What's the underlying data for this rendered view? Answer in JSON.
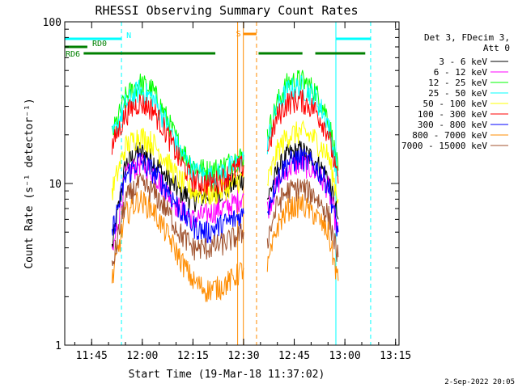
{
  "chart_data": {
    "type": "line",
    "title": "RHESSI Observing Summary Count Rates",
    "xlabel": "Start Time (19-Mar-18 11:37:02)",
    "ylabel": "Count Rate (s⁻¹ detector⁻¹)",
    "x_unit": "minutes after 11:37:02",
    "xlim_minutes": [
      0,
      99
    ],
    "ylim": [
      1,
      100
    ],
    "y_scale": "log",
    "grid": false,
    "x_ticks": [
      {
        "label": "11:45",
        "minutes": 7.97
      },
      {
        "label": "12:00",
        "minutes": 22.97
      },
      {
        "label": "12:15",
        "minutes": 37.97
      },
      {
        "label": "12:30",
        "minutes": 52.97
      },
      {
        "label": "12:45",
        "minutes": 67.97
      },
      {
        "label": "13:00",
        "minutes": 82.97
      },
      {
        "label": "13:15",
        "minutes": 97.97
      }
    ],
    "y_ticks": [
      {
        "label": "1",
        "value": 1
      },
      {
        "label": "10",
        "value": 10
      },
      {
        "label": "100",
        "value": 100
      }
    ],
    "legend_header": [
      "Det 3, FDecim 3,",
      "Att 0"
    ],
    "legend_position": "right",
    "series": [
      {
        "name": "3 - 6 keV",
        "color": "#000000",
        "segments": [
          {
            "t": [
              14,
              18,
              22,
              26,
              30,
              34,
              38,
              42,
              46,
              50,
              53
            ],
            "v": [
              4,
              13,
              16,
              14,
              11,
              9,
              8,
              8.5,
              9,
              10,
              11
            ]
          },
          {
            "t": [
              60,
              63,
              66,
              70,
              74,
              78,
              81
            ],
            "v": [
              8,
              12,
              15,
              16,
              14,
              11,
              6
            ]
          }
        ]
      },
      {
        "name": "6 - 12 keV",
        "color": "#ff00ff",
        "segments": [
          {
            "t": [
              14,
              18,
              22,
              26,
              30,
              34,
              38,
              42,
              46,
              50,
              53
            ],
            "v": [
              3.5,
              11,
              13.5,
              12,
              9,
              7,
              6,
              6.5,
              7,
              7.5,
              8.5
            ]
          },
          {
            "t": [
              60,
              63,
              66,
              70,
              74,
              78,
              81
            ],
            "v": [
              7,
              10,
              12.5,
              13.5,
              12,
              9.5,
              5
            ]
          }
        ]
      },
      {
        "name": "12 - 25 keV",
        "color": "#00ff00",
        "segments": [
          {
            "t": [
              14,
              18,
              22,
              26,
              30,
              34,
              38,
              42,
              46,
              50,
              53
            ],
            "v": [
              20,
              34,
              42,
              38,
              26,
              17,
              13,
              12,
              12.5,
              14,
              15
            ]
          },
          {
            "t": [
              60,
              63,
              66,
              70,
              74,
              78,
              81
            ],
            "v": [
              20,
              32,
              42,
              44,
              38,
              26,
              12
            ]
          }
        ]
      },
      {
        "name": "25 - 50 keV",
        "color": "#00ffff",
        "segments": [
          {
            "t": [
              14,
              18,
              22,
              26,
              30,
              34,
              38,
              42,
              46,
              50,
              53
            ],
            "v": [
              19,
              31,
              38,
              34,
              24,
              16,
              12,
              11,
              11.5,
              13,
              14
            ]
          },
          {
            "t": [
              60,
              63,
              66,
              70,
              74,
              78,
              81
            ],
            "v": [
              18,
              30,
              38,
              40,
              35,
              24,
              11
            ]
          }
        ]
      },
      {
        "name": "50 - 100 keV",
        "color": "#ffff00",
        "segments": [
          {
            "t": [
              14,
              18,
              22,
              26,
              30,
              34,
              38,
              42,
              46,
              50,
              53
            ],
            "v": [
              9,
              17,
              20,
              18,
              14,
              10.5,
              9,
              8.5,
              9,
              10,
              11
            ]
          },
          {
            "t": [
              60,
              63,
              66,
              70,
              74,
              78,
              81
            ],
            "v": [
              10,
              16,
              20,
              21,
              19,
              15,
              8
            ]
          }
        ]
      },
      {
        "name": "100 - 300 keV",
        "color": "#ff0000",
        "segments": [
          {
            "t": [
              14,
              18,
              22,
              26,
              30,
              34,
              38,
              42,
              46,
              50,
              53
            ],
            "v": [
              17,
              27,
              32,
              29,
              21,
              14,
              10.5,
              10,
              10.5,
              12,
              13
            ]
          },
          {
            "t": [
              60,
              63,
              66,
              70,
              74,
              78,
              81
            ],
            "v": [
              16,
              26,
              32,
              33,
              29,
              21,
              10
            ]
          }
        ]
      },
      {
        "name": "300 - 800 keV",
        "color": "#0000ff",
        "segments": [
          {
            "t": [
              14,
              18,
              22,
              26,
              30,
              34,
              38,
              42,
              46,
              50,
              53
            ],
            "v": [
              5,
              11,
              14,
              12,
              9.5,
              7,
              5.5,
              5,
              5.5,
              6,
              6.5
            ]
          },
          {
            "t": [
              60,
              63,
              66,
              70,
              74,
              78,
              81
            ],
            "v": [
              7,
              11,
              13.5,
              14.5,
              13,
              10,
              5
            ]
          }
        ]
      },
      {
        "name": "800 - 7000 keV",
        "color": "#ff8c00",
        "segments": [
          {
            "t": [
              14,
              18,
              22,
              26,
              30,
              34,
              38,
              42,
              46,
              50,
              53
            ],
            "v": [
              2.5,
              6.5,
              8,
              7,
              5,
              3.5,
              2.5,
              2.2,
              2.3,
              2.6,
              3
            ]
          },
          {
            "t": [
              60,
              63,
              66,
              70,
              74,
              78,
              81
            ],
            "v": [
              3,
              5.5,
              7,
              7.5,
              6.5,
              5,
              2.5
            ]
          }
        ]
      },
      {
        "name": "7000 - 15000 keV",
        "color": "#a0522d",
        "segments": [
          {
            "t": [
              14,
              18,
              22,
              26,
              30,
              34,
              38,
              42,
              46,
              50,
              53
            ],
            "v": [
              3,
              8,
              10,
              9,
              7,
              5,
              4,
              4,
              4.2,
              4.6,
              5
            ]
          },
          {
            "t": [
              60,
              63,
              66,
              70,
              74,
              78,
              81
            ],
            "v": [
              4.5,
              7.5,
              9,
              9.5,
              8.5,
              6.5,
              3.5
            ]
          }
        ]
      }
    ],
    "status_bars": [
      {
        "label": "N",
        "color": "#00ffff",
        "segments": [
          [
            0,
            16.8
          ],
          [
            80.3,
            90.6
          ]
        ]
      },
      {
        "label": "RD0",
        "color": "#008000",
        "segments": [
          [
            0,
            6.7
          ]
        ]
      },
      {
        "label": "RD6",
        "color": "#008000",
        "segments": [
          [
            5.6,
            44.6
          ],
          [
            57.4,
            70.4
          ],
          [
            74.2,
            89
          ]
        ]
      },
      {
        "label": "S",
        "color": "#ff8c00",
        "segments": [
          [
            52.9,
            56.8
          ]
        ]
      }
    ],
    "vertical_markers": [
      {
        "minutes": 16.8,
        "color": "#00ffff",
        "style": "dashed"
      },
      {
        "minutes": 80.3,
        "color": "#00ffff",
        "style": "solid"
      },
      {
        "minutes": 90.6,
        "color": "#00ffff",
        "style": "dashed"
      },
      {
        "minutes": 51.2,
        "color": "#ff8c00",
        "style": "solid"
      },
      {
        "minutes": 52.9,
        "color": "#ff8c00",
        "style": "solid"
      },
      {
        "minutes": 56.8,
        "color": "#ff8c00",
        "style": "dashed"
      }
    ],
    "footer_date": "2-Sep-2022 20:05"
  }
}
